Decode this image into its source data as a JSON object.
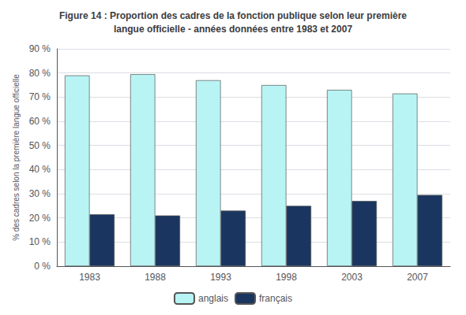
{
  "chart_data": {
    "type": "bar",
    "title": "Figure 14 : Proportion des cadres de la fonction publique selon leur première\nlangue officielle - années données entre 1983 et 2007",
    "categories": [
      "1983",
      "1988",
      "1993",
      "1998",
      "2003",
      "2007"
    ],
    "series": [
      {
        "name": "anglais",
        "color": "#b8f4f4",
        "values": [
          79,
          79.5,
          77,
          75,
          73,
          71.5
        ]
      },
      {
        "name": "français",
        "color": "#1a3660",
        "values": [
          21.5,
          21,
          23,
          25,
          27,
          29.5
        ]
      }
    ],
    "y_label": "% des cadres selon la première langue officielle",
    "ylim": [
      0,
      90
    ],
    "yticks": [
      {
        "value": 0,
        "label": "0 %"
      },
      {
        "value": 10,
        "label": "10 %"
      },
      {
        "value": 20,
        "label": "20 %"
      },
      {
        "value": 30,
        "label": "30 %"
      },
      {
        "value": 40,
        "label": "40 %"
      },
      {
        "value": 50,
        "label": "50 %"
      },
      {
        "value": 60,
        "label": "60 %"
      },
      {
        "value": 70,
        "label": "70 %"
      },
      {
        "value": 80,
        "label": "80 %"
      },
      {
        "value": 90,
        "label": "90 %"
      }
    ],
    "grid": true,
    "legend": "bottom"
  }
}
